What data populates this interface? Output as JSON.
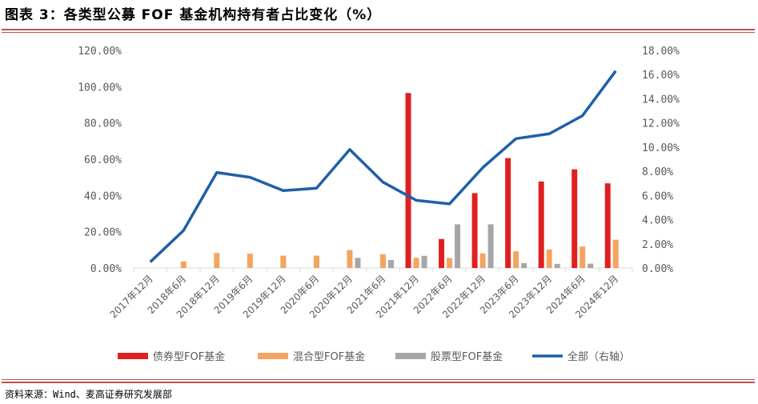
{
  "header": {
    "title": "图表 3：各类型公募 FOF 基金机构持有者占比变化（%）"
  },
  "footer": {
    "source": "资料来源：Wind、麦高证券研究发展部"
  },
  "chart_data": {
    "type": "bar",
    "categories": [
      "2017年12月",
      "2018年6月",
      "2018年12月",
      "2019年6月",
      "2019年12月",
      "2020年6月",
      "2020年12月",
      "2021年6月",
      "2021年12月",
      "2022年6月",
      "2022年12月",
      "2023年6月",
      "2023年12月",
      "2024年6月",
      "2024年12月"
    ],
    "series": [
      {
        "name": "债券型FOF基金",
        "type": "bar",
        "axis": "left",
        "color": "#e02020",
        "values": [
          null,
          null,
          null,
          null,
          null,
          null,
          null,
          null,
          96.5,
          16.0,
          41.3,
          60.6,
          47.7,
          54.4,
          46.7
        ]
      },
      {
        "name": "混合型FOF基金",
        "type": "bar",
        "axis": "left",
        "color": "#f4a460",
        "values": [
          null,
          3.6,
          8.3,
          7.9,
          6.8,
          6.8,
          9.9,
          7.6,
          5.6,
          5.5,
          8.1,
          9.2,
          10.2,
          11.8,
          15.6
        ]
      },
      {
        "name": "股票型FOF基金",
        "type": "bar",
        "axis": "left",
        "color": "#a6a6a6",
        "values": [
          null,
          null,
          null,
          null,
          null,
          null,
          5.6,
          4.4,
          6.7,
          24.1,
          24.1,
          2.7,
          2.3,
          2.4,
          null
        ]
      },
      {
        "name": "全部（右轴）",
        "type": "line",
        "axis": "right",
        "color": "#1f5fa8",
        "values": [
          0.5,
          3.1,
          7.9,
          7.5,
          6.4,
          6.6,
          9.8,
          7.1,
          5.6,
          5.3,
          8.3,
          10.7,
          11.1,
          12.6,
          16.3
        ]
      }
    ],
    "y_left": {
      "min": 0,
      "max": 120,
      "step": 20,
      "tick_labels": [
        "0.00%",
        "20.00%",
        "40.00%",
        "60.00%",
        "80.00%",
        "100.00%",
        "120.00%"
      ]
    },
    "y_right": {
      "min": 0,
      "max": 18,
      "step": 2,
      "tick_labels": [
        "0.00%",
        "2.00%",
        "4.00%",
        "6.00%",
        "8.00%",
        "10.00%",
        "12.00%",
        "14.00%",
        "16.00%",
        "18.00%"
      ]
    },
    "grid": false,
    "legend_position": "bottom"
  }
}
